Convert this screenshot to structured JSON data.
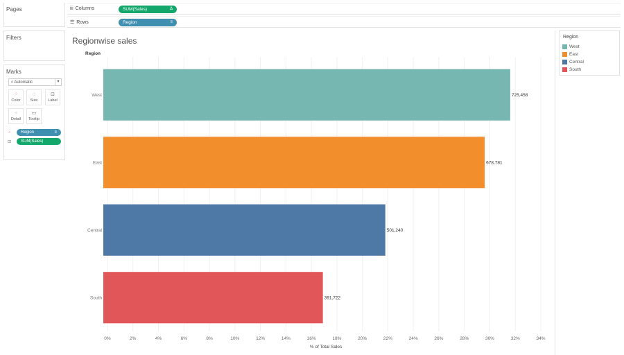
{
  "shelves": {
    "columns_label": "Columns",
    "columns_pill": "SUM(Sales)",
    "columns_pill_icon": "Δ",
    "rows_label": "Rows",
    "rows_pill": "Region",
    "rows_pill_icon": "≡"
  },
  "cards": {
    "pages_title": "Pages",
    "filters_title": "Filters",
    "marks_title": "Marks",
    "mark_type": "Automatic",
    "mark_buttons": [
      "Color",
      "Size",
      "Label",
      "Detail",
      "Tooltip"
    ],
    "mark_pills": [
      "Region",
      "SUM(Sales)"
    ]
  },
  "legend": {
    "title": "Region",
    "items": [
      {
        "label": "West",
        "color": "#76b7b2"
      },
      {
        "label": "East",
        "color": "#f28e2b"
      },
      {
        "label": "Central",
        "color": "#4e79a7"
      },
      {
        "label": "South",
        "color": "#e15759"
      }
    ]
  },
  "chart_data": {
    "type": "bar",
    "orientation": "horizontal",
    "title": "Regionwise sales",
    "row_header": "Region",
    "xlabel": "% of Total Sales",
    "categories": [
      "West",
      "East",
      "Central",
      "South"
    ],
    "values": [
      31.6,
      29.6,
      21.8,
      16.9
    ],
    "data_labels": [
      "725,458",
      "678,781",
      "501,240",
      "391,722"
    ],
    "colors": [
      "#76b7b2",
      "#f28e2b",
      "#4e79a7",
      "#e15759"
    ],
    "xlim": [
      0,
      34
    ],
    "ticks": [
      "0%",
      "2%",
      "4%",
      "6%",
      "8%",
      "10%",
      "12%",
      "14%",
      "16%",
      "18%",
      "20%",
      "22%",
      "24%",
      "26%",
      "28%",
      "30%",
      "32%",
      "34%"
    ],
    "grid": true
  }
}
